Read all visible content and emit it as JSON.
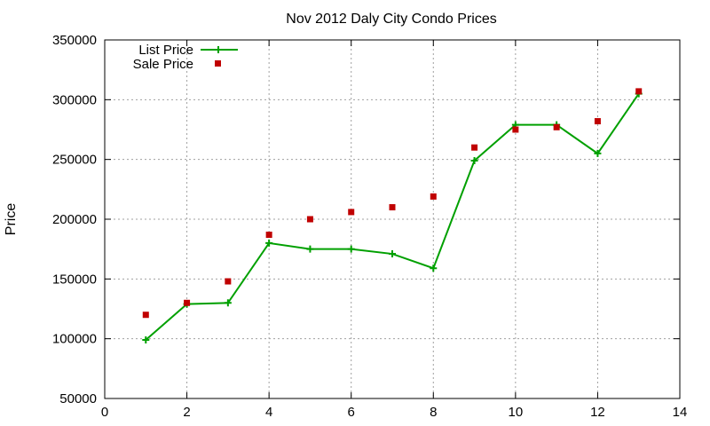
{
  "chart_data": {
    "type": "line",
    "title": "Nov 2012 Daly City Condo Prices",
    "xlabel": "",
    "ylabel": "Price",
    "xlim": [
      0,
      14
    ],
    "ylim": [
      50000,
      350000
    ],
    "xticks": [
      0,
      2,
      4,
      6,
      8,
      10,
      12,
      14
    ],
    "yticks": [
      50000,
      100000,
      150000,
      200000,
      250000,
      300000,
      350000
    ],
    "grid": true,
    "legend_position": "top-left",
    "series": [
      {
        "name": "List Price",
        "style": "line+cross",
        "color": "#00a000",
        "x": [
          1,
          2,
          3,
          4,
          5,
          6,
          7,
          8,
          9,
          10,
          11,
          12,
          13
        ],
        "y": [
          99000,
          129000,
          130000,
          180000,
          175000,
          175000,
          171000,
          159000,
          249000,
          279000,
          279000,
          255000,
          305000
        ]
      },
      {
        "name": "Sale Price",
        "style": "square",
        "color": "#c00000",
        "x": [
          1,
          2,
          3,
          4,
          5,
          6,
          7,
          8,
          9,
          10,
          11,
          12,
          13
        ],
        "y": [
          120000,
          130000,
          148000,
          187000,
          200000,
          206000,
          210000,
          219000,
          260000,
          275000,
          277000,
          282000,
          307000
        ]
      }
    ]
  }
}
